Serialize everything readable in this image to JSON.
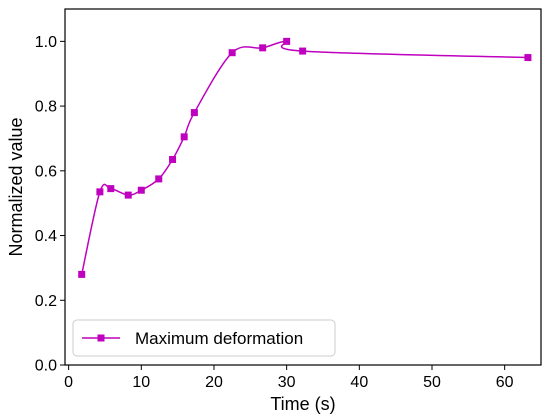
{
  "chart_data": {
    "type": "line",
    "xlabel": "Time (s)",
    "ylabel": "Normalized value",
    "xlim": [
      -0.5,
      65
    ],
    "ylim": [
      0.0,
      1.1
    ],
    "xticks": [
      0,
      10,
      20,
      30,
      40,
      50,
      60
    ],
    "yticks": [
      0.0,
      0.2,
      0.4,
      0.6,
      0.8,
      1.0
    ],
    "xtick_labels": [
      "0",
      "10",
      "20",
      "30",
      "40",
      "50",
      "60"
    ],
    "ytick_labels": [
      "0.0",
      "0.2",
      "0.4",
      "0.6",
      "0.8",
      "1.0"
    ],
    "grid": false,
    "legend_position": "lower-left",
    "series": [
      {
        "name": "Maximum deformation",
        "color": "#bf00bf",
        "marker": "square",
        "x": [
          1.8,
          4.3,
          5.8,
          8.2,
          10.0,
          12.4,
          14.3,
          15.9,
          17.3,
          22.5,
          26.7,
          30.0,
          32.2,
          63.2
        ],
        "y": [
          0.28,
          0.535,
          0.545,
          0.525,
          0.54,
          0.575,
          0.635,
          0.705,
          0.78,
          0.965,
          0.98,
          1.0,
          0.97,
          0.95
        ]
      }
    ]
  }
}
